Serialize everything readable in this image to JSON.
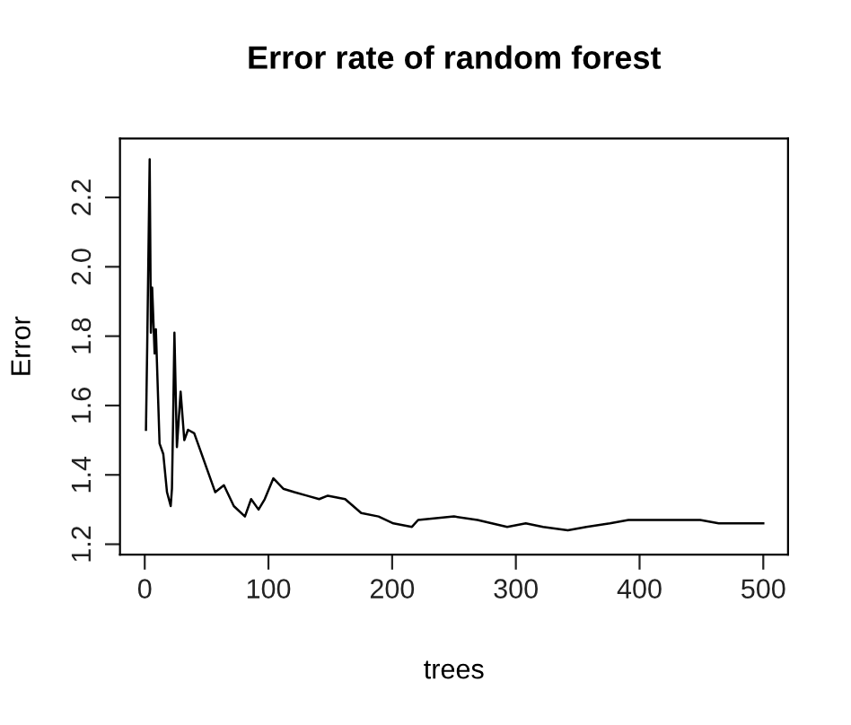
{
  "chart_data": {
    "type": "line",
    "title": "Error rate of random forest",
    "xlabel": "trees",
    "ylabel": "Error",
    "xlim": [
      -20,
      520
    ],
    "ylim": [
      1.17,
      2.37
    ],
    "xticks": [
      0,
      100,
      200,
      300,
      400,
      500
    ],
    "yticks": [
      1.2,
      1.4,
      1.6,
      1.8,
      {
        "value": 2,
        "label": "2.0"
      },
      2.2
    ],
    "grid": false,
    "marker": "none",
    "line_style": "solid",
    "series": [
      {
        "color": "#000000",
        "x": [
          1,
          2,
          4,
          5,
          6,
          8,
          9,
          12,
          15,
          18,
          21,
          22,
          23,
          24,
          26,
          29,
          32,
          35,
          40,
          45,
          51,
          57,
          64,
          72,
          81,
          86,
          92,
          97,
          104,
          112,
          121,
          131,
          141,
          148,
          162,
          175,
          189,
          201,
          216,
          221,
          250,
          269,
          293,
          308,
          322,
          342,
          357,
          376,
          391,
          410,
          425,
          449,
          464,
          483,
          500
        ],
        "values": [
          1.53,
          1.77,
          2.31,
          1.81,
          1.94,
          1.75,
          1.82,
          1.49,
          1.46,
          1.35,
          1.31,
          1.36,
          1.57,
          1.81,
          1.48,
          1.64,
          1.5,
          1.53,
          1.52,
          1.47,
          1.41,
          1.35,
          1.37,
          1.31,
          1.28,
          1.33,
          1.3,
          1.33,
          1.39,
          1.36,
          1.35,
          1.34,
          1.33,
          1.34,
          1.33,
          1.29,
          1.28,
          1.26,
          1.25,
          1.27,
          1.28,
          1.27,
          1.25,
          1.26,
          1.25,
          1.24,
          1.25,
          1.26,
          1.27,
          1.27,
          1.27,
          1.27,
          1.26,
          1.26,
          1.26
        ]
      }
    ]
  }
}
